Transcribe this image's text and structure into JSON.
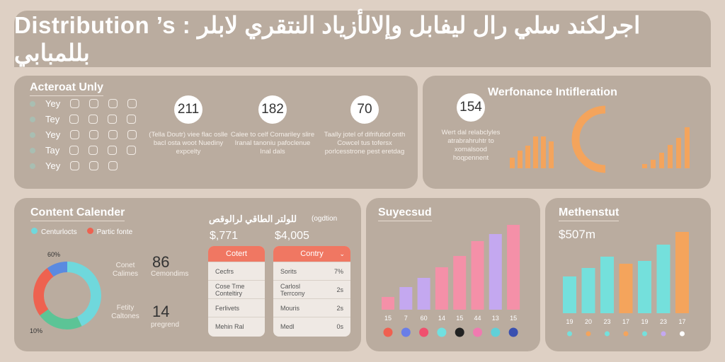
{
  "header": {
    "title": "Distribution ’s : اجرلكند سلي رال ليفابل وإلالأزياد النتقري لابلر بللمبابي"
  },
  "activity": {
    "title": "Acteroat Unly",
    "rows": [
      "Yey",
      "Tey",
      "Yey",
      "Tay",
      "Yey"
    ],
    "stats": [
      {
        "value": "211",
        "desc": "(Tella Doutr) viee flac oslle bacl osta woot Nuediny expcelty"
      },
      {
        "value": "182",
        "desc": "Calee to celf Comariley slire Iranal tanoniu pafoclenue Inal dals"
      },
      {
        "value": "70",
        "desc": "Taally jotel of difrifutiof onth Cowcel tus tofersx porlcesstrone pest eretdag"
      }
    ]
  },
  "performance": {
    "title": "Werfonance Intifleration",
    "value": "154",
    "desc": "Wert dal relabclyles atrabrahruhtr to xomalsood hoqpennent",
    "accent": "#f4a45c",
    "bars_left": [
      15,
      25,
      32,
      45,
      45,
      38
    ],
    "bars_right": [
      6,
      12,
      22,
      33,
      43,
      58
    ],
    "arc_fraction": 0.5
  },
  "calendar": {
    "title": "Content Calender",
    "legend": [
      {
        "label": "Centurlocts",
        "color": "#6fd8dc"
      },
      {
        "label": "Partic fonte",
        "color": "#ee6250"
      }
    ],
    "donut": [
      {
        "value": 43,
        "color": "#6fd8dc"
      },
      {
        "value": 22,
        "color": "#5cc496"
      },
      {
        "value": 25,
        "color": "#ee6250"
      },
      {
        "value": 10,
        "color": "#5a8ae0"
      }
    ],
    "pct_top": "60%",
    "pct_bottom": "10%",
    "callouts": [
      {
        "label": "Conet Calimes",
        "value": "86",
        "sub": "Cemondims"
      },
      {
        "label": "Fetity Caltones",
        "value": "14",
        "sub": "pregrend"
      }
    ],
    "arabic_title": "للولتر الطاقي لرالوقص",
    "arabic_sub": "(ogdtion",
    "amount1": "$,771",
    "amount2": "$4,005",
    "table1": {
      "header": "Cotert",
      "rows": [
        "Cecfrs",
        "Cose Tme Conteltiry",
        "Ferlivets",
        "Mehin Ral"
      ]
    },
    "table2": {
      "header": "Contry",
      "rows": [
        {
          "name": "Sorits",
          "value": "7%"
        },
        {
          "name": "Carlosl Terrcony",
          "value": "2s"
        },
        {
          "name": "Mouris",
          "value": "2s"
        },
        {
          "name": "Medl",
          "value": "0s"
        }
      ]
    }
  },
  "chart_data": [
    {
      "type": "bar",
      "title": "Suyecsud",
      "categories": [
        "15",
        "7",
        "60",
        "14",
        "15",
        "44",
        "13",
        "15"
      ],
      "values": [
        18,
        32,
        45,
        60,
        76,
        97,
        107,
        120
      ],
      "colors": [
        "#f490a8",
        "#c4a8f0",
        "#c4a8f0",
        "#f490a8",
        "#f490a8",
        "#f490a8",
        "#c4a8f0",
        "#f490a8"
      ],
      "dot_colors": [
        "#f06050",
        "#6a7ee8",
        "#f0506e",
        "#70e0e0",
        "#222222",
        "#f07ab0",
        "#60d0d8",
        "#3a50b0"
      ]
    },
    {
      "type": "bar",
      "title": "Methenstut",
      "subtitle": "$507m",
      "categories": [
        "19",
        "20",
        "23",
        "17",
        "19",
        "23",
        "17"
      ],
      "values": [
        52,
        64,
        80,
        70,
        74,
        97,
        115
      ],
      "colors": [
        "#74e0dc",
        "#74e0dc",
        "#74e0dc",
        "#f4a45c",
        "#74e0dc",
        "#74e0dc",
        "#f4a45c"
      ],
      "dot_colors": [
        "#74e0dc",
        "#f4a45c",
        "#74e0dc",
        "#f4a45c",
        "#74e0dc",
        "#c4a8f0",
        "#ffffff"
      ]
    }
  ]
}
